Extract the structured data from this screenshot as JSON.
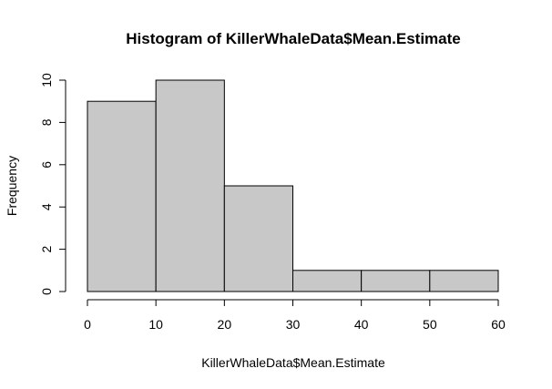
{
  "chart_data": {
    "type": "bar",
    "title": "Histogram of KillerWhaleData$Mean.Estimate",
    "xlabel": "KillerWhaleData$Mean.Estimate",
    "ylabel": "Frequency",
    "bins": [
      [
        0,
        10
      ],
      [
        10,
        20
      ],
      [
        20,
        30
      ],
      [
        30,
        40
      ],
      [
        40,
        50
      ],
      [
        50,
        60
      ]
    ],
    "values": [
      9,
      10,
      5,
      1,
      1,
      1
    ],
    "xlim": [
      0,
      60
    ],
    "ylim": [
      0,
      10
    ],
    "x_ticks": [
      0,
      10,
      20,
      30,
      40,
      50,
      60
    ],
    "y_ticks": [
      0,
      2,
      4,
      6,
      8,
      10
    ],
    "bar_color": "#c8c8c8",
    "grid": false
  }
}
